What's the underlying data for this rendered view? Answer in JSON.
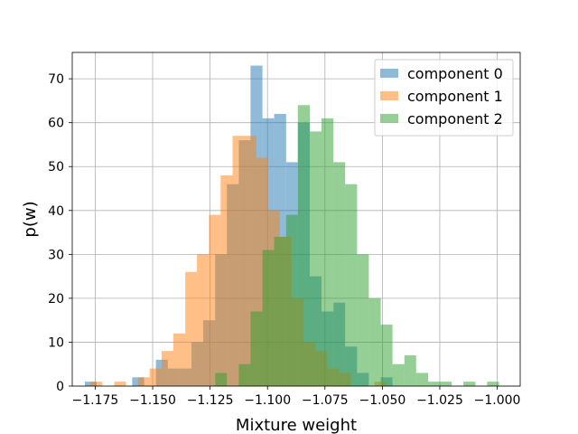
{
  "chart_data": {
    "type": "histogram",
    "title": "",
    "xlabel": "Mixture weight",
    "ylabel": "p(w)",
    "xlim": [
      -1.185,
      -0.99
    ],
    "ylim": [
      0,
      76
    ],
    "grid": true,
    "legend_position": "top-right",
    "bin_width": 0.00515,
    "xticks": [
      -1.175,
      -1.15,
      -1.125,
      -1.1,
      -1.075,
      -1.05,
      -1.025,
      -1.0
    ],
    "xtick_labels": [
      "−1.175",
      "−1.150",
      "−1.125",
      "−1.100",
      "−1.075",
      "−1.050",
      "−1.025",
      "−1.000"
    ],
    "yticks": [
      0,
      10,
      20,
      30,
      40,
      50,
      60,
      70
    ],
    "ytick_labels": [
      "0",
      "10",
      "20",
      "30",
      "40",
      "50",
      "60",
      "70"
    ],
    "series": [
      {
        "name": "component 0",
        "color": "#1f77b4",
        "alpha": 0.5,
        "bins": [
          {
            "x0": -1.1795,
            "x1": -1.1744,
            "count": 1
          },
          {
            "x0": -1.1589,
            "x1": -1.1537,
            "count": 2
          },
          {
            "x0": -1.1486,
            "x1": -1.1434,
            "count": 6
          },
          {
            "x0": -1.1434,
            "x1": -1.1383,
            "count": 4
          },
          {
            "x0": -1.1383,
            "x1": -1.1331,
            "count": 4
          },
          {
            "x0": -1.1331,
            "x1": -1.128,
            "count": 10
          },
          {
            "x0": -1.128,
            "x1": -1.1228,
            "count": 15
          },
          {
            "x0": -1.1228,
            "x1": -1.1177,
            "count": 30
          },
          {
            "x0": -1.1177,
            "x1": -1.1125,
            "count": 46
          },
          {
            "x0": -1.1125,
            "x1": -1.1074,
            "count": 56
          },
          {
            "x0": -1.1074,
            "x1": -1.1022,
            "count": 73
          },
          {
            "x0": -1.1022,
            "x1": -1.0971,
            "count": 61
          },
          {
            "x0": -1.0971,
            "x1": -1.0919,
            "count": 62
          },
          {
            "x0": -1.0919,
            "x1": -1.0868,
            "count": 51
          },
          {
            "x0": -1.0868,
            "x1": -1.0816,
            "count": 60
          },
          {
            "x0": -1.0816,
            "x1": -1.0765,
            "count": 25
          },
          {
            "x0": -1.0765,
            "x1": -1.0713,
            "count": 17
          },
          {
            "x0": -1.0713,
            "x1": -1.0662,
            "count": 19
          },
          {
            "x0": -1.0662,
            "x1": -1.061,
            "count": 9
          },
          {
            "x0": -1.061,
            "x1": -1.0559,
            "count": 3
          },
          {
            "x0": -1.0507,
            "x1": -1.0456,
            "count": 2
          }
        ]
      },
      {
        "name": "component 1",
        "color": "#ff7f0e",
        "alpha": 0.5,
        "bins": [
          {
            "x0": -1.177,
            "x1": -1.1719,
            "count": 1
          },
          {
            "x0": -1.1667,
            "x1": -1.1616,
            "count": 1
          },
          {
            "x0": -1.1564,
            "x1": -1.1513,
            "count": 2
          },
          {
            "x0": -1.1513,
            "x1": -1.1461,
            "count": 4
          },
          {
            "x0": -1.1461,
            "x1": -1.141,
            "count": 8
          },
          {
            "x0": -1.141,
            "x1": -1.1358,
            "count": 12
          },
          {
            "x0": -1.1358,
            "x1": -1.1307,
            "count": 26
          },
          {
            "x0": -1.1307,
            "x1": -1.1255,
            "count": 30
          },
          {
            "x0": -1.1255,
            "x1": -1.1204,
            "count": 39
          },
          {
            "x0": -1.1204,
            "x1": -1.1152,
            "count": 48
          },
          {
            "x0": -1.1152,
            "x1": -1.1101,
            "count": 57
          },
          {
            "x0": -1.1101,
            "x1": -1.1049,
            "count": 57
          },
          {
            "x0": -1.1049,
            "x1": -1.0998,
            "count": 52
          },
          {
            "x0": -1.0998,
            "x1": -1.0946,
            "count": 40
          },
          {
            "x0": -1.0946,
            "x1": -1.0895,
            "count": 34
          },
          {
            "x0": -1.0895,
            "x1": -1.0843,
            "count": 20
          },
          {
            "x0": -1.0843,
            "x1": -1.0792,
            "count": 10
          },
          {
            "x0": -1.0792,
            "x1": -1.074,
            "count": 8
          },
          {
            "x0": -1.074,
            "x1": -1.0689,
            "count": 4
          },
          {
            "x0": -1.0689,
            "x1": -1.0637,
            "count": 3
          },
          {
            "x0": -1.0534,
            "x1": -1.0483,
            "count": 1
          }
        ]
      },
      {
        "name": "component 2",
        "color": "#2ca02c",
        "alpha": 0.5,
        "bins": [
          {
            "x0": -1.1228,
            "x1": -1.1177,
            "count": 3
          },
          {
            "x0": -1.1125,
            "x1": -1.1074,
            "count": 5
          },
          {
            "x0": -1.1074,
            "x1": -1.1022,
            "count": 17
          },
          {
            "x0": -1.1022,
            "x1": -1.0971,
            "count": 31
          },
          {
            "x0": -1.0971,
            "x1": -1.0919,
            "count": 34
          },
          {
            "x0": -1.0919,
            "x1": -1.0868,
            "count": 39
          },
          {
            "x0": -1.0868,
            "x1": -1.0816,
            "count": 64
          },
          {
            "x0": -1.0816,
            "x1": -1.0765,
            "count": 58
          },
          {
            "x0": -1.0765,
            "x1": -1.0713,
            "count": 61
          },
          {
            "x0": -1.0713,
            "x1": -1.0662,
            "count": 51
          },
          {
            "x0": -1.0662,
            "x1": -1.061,
            "count": 46
          },
          {
            "x0": -1.061,
            "x1": -1.0559,
            "count": 30
          },
          {
            "x0": -1.0559,
            "x1": -1.0507,
            "count": 20
          },
          {
            "x0": -1.0507,
            "x1": -1.0456,
            "count": 14
          },
          {
            "x0": -1.0456,
            "x1": -1.0404,
            "count": 5
          },
          {
            "x0": -1.0404,
            "x1": -1.0353,
            "count": 7
          },
          {
            "x0": -1.0353,
            "x1": -1.0301,
            "count": 3
          },
          {
            "x0": -1.0301,
            "x1": -1.025,
            "count": 1
          },
          {
            "x0": -1.025,
            "x1": -1.0198,
            "count": 1
          },
          {
            "x0": -1.0147,
            "x1": -1.0095,
            "count": 1
          },
          {
            "x0": -1.0044,
            "x1": -0.9992,
            "count": 1
          }
        ]
      }
    ]
  }
}
